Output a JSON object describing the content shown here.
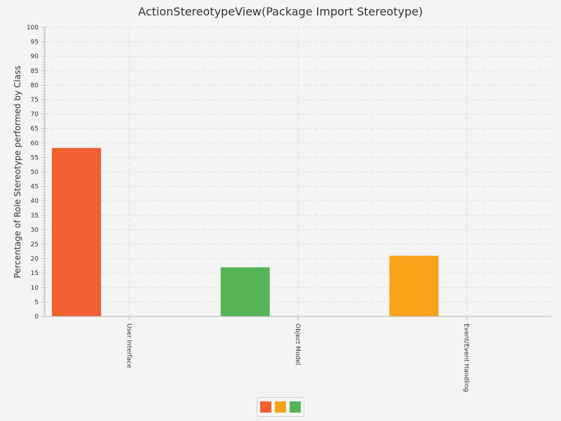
{
  "chart_data": {
    "type": "bar",
    "title": "ActionStereotypeView(Package Import Stereotype)",
    "ylabel": "Percentage of Role Stereotype performed by Class",
    "xlabel": "",
    "ylim": [
      0,
      100
    ],
    "y_major_step": 5,
    "y_minor_step": 1,
    "grid": true,
    "categories": [
      "User Interface",
      "Object Model",
      "Event/Event Handling"
    ],
    "series": [
      {
        "color": "#f06030",
        "values": [
          58.3,
          0,
          0
        ]
      },
      {
        "color": "#f8a21a",
        "values": [
          0,
          0,
          21
        ]
      },
      {
        "color": "#55b555",
        "values": [
          0,
          17,
          0
        ]
      }
    ],
    "bars": [
      {
        "category": "User Interface",
        "value": 58.3,
        "color": "#f06030"
      },
      {
        "category": "Object Model",
        "value": 17,
        "color": "#55b555"
      },
      {
        "category": "Event/Event Handling",
        "value": 21,
        "color": "#f8a21a"
      }
    ],
    "legend_position": "bottom",
    "legend_colors": [
      "#f06030",
      "#f8a21a",
      "#55b555"
    ]
  }
}
